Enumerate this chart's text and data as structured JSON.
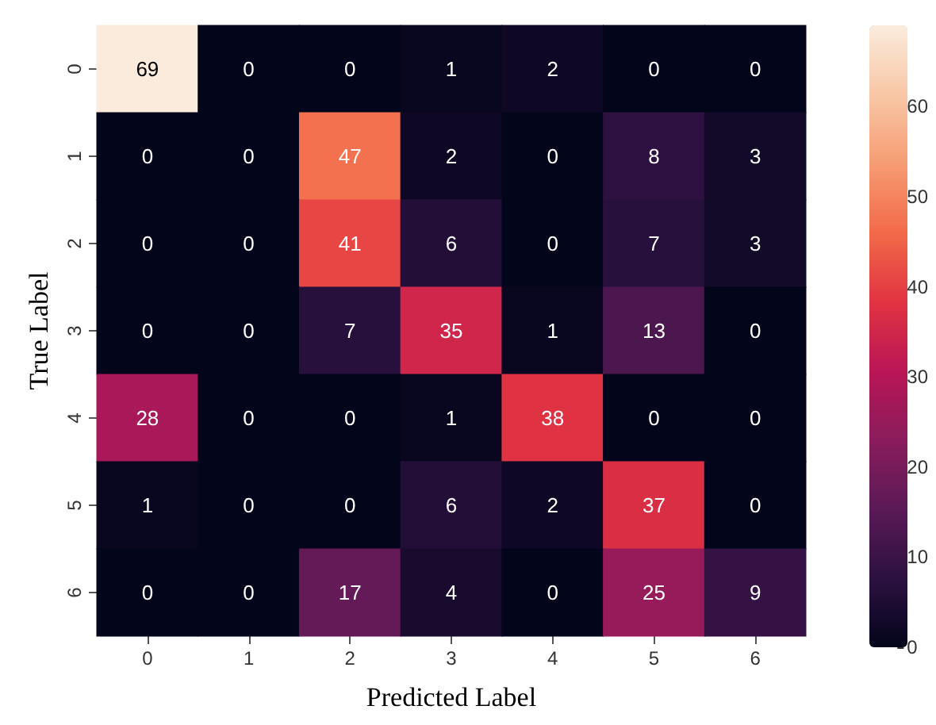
{
  "chart_data": {
    "type": "heatmap",
    "xlabel": "Predicted Label",
    "ylabel": "True Label",
    "categories": [
      "0",
      "1",
      "2",
      "3",
      "4",
      "5",
      "6"
    ],
    "y_categories": [
      "0",
      "1",
      "2",
      "3",
      "4",
      "5",
      "6"
    ],
    "cells": [
      [
        69,
        0,
        0,
        1,
        2,
        0,
        0
      ],
      [
        0,
        0,
        47,
        2,
        0,
        8,
        3
      ],
      [
        0,
        0,
        41,
        6,
        0,
        7,
        3
      ],
      [
        0,
        0,
        7,
        35,
        1,
        13,
        0
      ],
      [
        28,
        0,
        0,
        1,
        38,
        0,
        0
      ],
      [
        1,
        0,
        0,
        6,
        2,
        37,
        0
      ],
      [
        0,
        0,
        17,
        4,
        0,
        25,
        9
      ]
    ],
    "clim": [
      0,
      69
    ],
    "cticks": [
      0,
      10,
      20,
      30,
      40,
      50,
      60
    ],
    "data_labels": true
  }
}
